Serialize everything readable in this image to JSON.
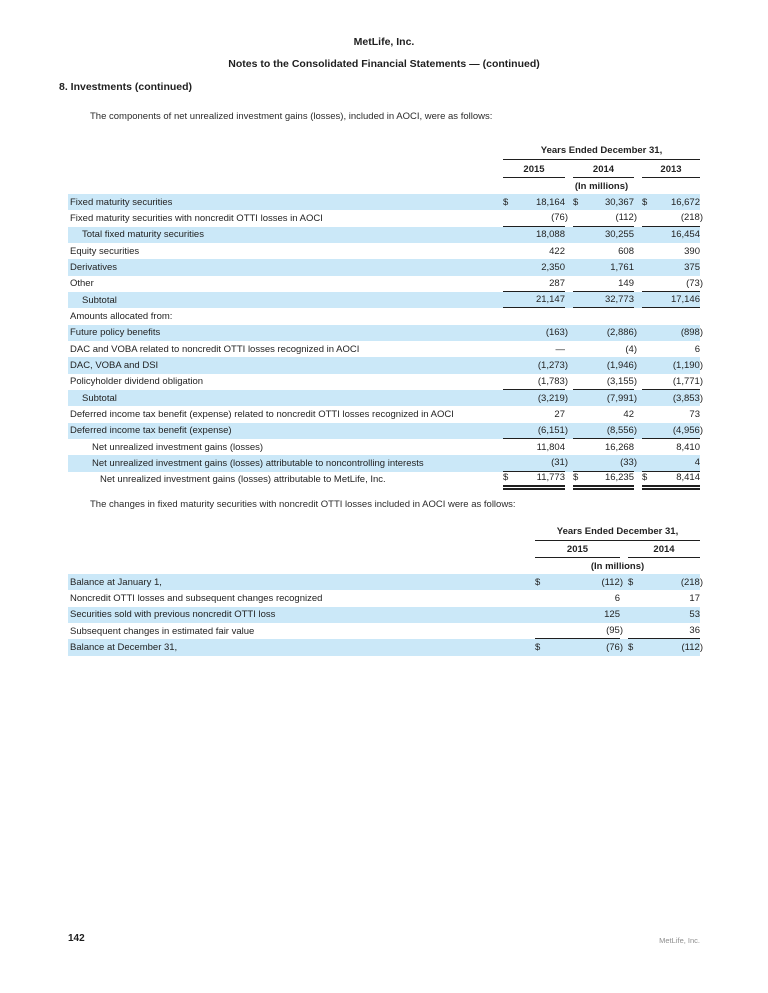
{
  "header": {
    "company": "MetLife, Inc.",
    "title": "Notes to the Consolidated Financial Statements — (continued)",
    "section": "8. Investments (continued)"
  },
  "paragraphs": {
    "intro1": "The components of net unrealized investment gains (losses), included in AOCI, were as follows:",
    "intro2": "The changes in fixed maturity securities with noncredit OTTI losses included in AOCI were as follows:"
  },
  "colors": {
    "row_shade": "#cbe8f8",
    "rule": "#1f1f1f",
    "text": "#232323",
    "footer_gray": "#8e8e8e"
  },
  "table1": {
    "period_header": "Years Ended December 31,",
    "units": "(In millions)",
    "columns": [
      "2015",
      "2014",
      "2013"
    ],
    "rows": [
      {
        "label": "Fixed maturity securities",
        "values": [
          "18,164",
          "30,367",
          "16,672"
        ],
        "dollar": true,
        "shaded": true,
        "indent": 0,
        "border": "none"
      },
      {
        "label": "Fixed maturity securities with noncredit OTTI losses in AOCI",
        "values": [
          "(76)",
          "(112)",
          "(218)"
        ],
        "dollar": false,
        "shaded": false,
        "indent": 0,
        "border": "bottom"
      },
      {
        "label": "Total fixed maturity securities",
        "values": [
          "18,088",
          "30,255",
          "16,454"
        ],
        "dollar": false,
        "shaded": true,
        "indent": 1,
        "border": "none"
      },
      {
        "label": "Equity securities",
        "values": [
          "422",
          "608",
          "390"
        ],
        "dollar": false,
        "shaded": false,
        "indent": 0,
        "border": "none"
      },
      {
        "label": "Derivatives",
        "values": [
          "2,350",
          "1,761",
          "375"
        ],
        "dollar": false,
        "shaded": true,
        "indent": 0,
        "border": "none"
      },
      {
        "label": "Other",
        "values": [
          "287",
          "149",
          "(73)"
        ],
        "dollar": false,
        "shaded": false,
        "indent": 0,
        "border": "bottom"
      },
      {
        "label": "Subtotal",
        "values": [
          "21,147",
          "32,773",
          "17,146"
        ],
        "dollar": false,
        "shaded": true,
        "indent": 1,
        "border": "bottom"
      },
      {
        "label": "Amounts allocated from:",
        "values": [
          "",
          "",
          ""
        ],
        "dollar": false,
        "shaded": false,
        "indent": 0,
        "border": "none"
      },
      {
        "label": "Future policy benefits",
        "values": [
          "(163)",
          "(2,886)",
          "(898)"
        ],
        "dollar": false,
        "shaded": true,
        "indent": 0,
        "border": "none"
      },
      {
        "label": "DAC and VOBA related to noncredit OTTI losses recognized in AOCI",
        "values": [
          "—",
          "(4)",
          "6"
        ],
        "dollar": false,
        "shaded": false,
        "indent": 0,
        "border": "none"
      },
      {
        "label": "DAC, VOBA and DSI",
        "values": [
          "(1,273)",
          "(1,946)",
          "(1,190)"
        ],
        "dollar": false,
        "shaded": true,
        "indent": 0,
        "border": "none"
      },
      {
        "label": "Policyholder dividend obligation",
        "values": [
          "(1,783)",
          "(3,155)",
          "(1,771)"
        ],
        "dollar": false,
        "shaded": false,
        "indent": 0,
        "border": "bottom"
      },
      {
        "label": "Subtotal",
        "values": [
          "(3,219)",
          "(7,991)",
          "(3,853)"
        ],
        "dollar": false,
        "shaded": true,
        "indent": 1,
        "border": "none"
      },
      {
        "label": "Deferred income tax benefit (expense) related to noncredit OTTI losses recognized in AOCI",
        "values": [
          "27",
          "42",
          "73"
        ],
        "dollar": false,
        "shaded": false,
        "indent": 0,
        "border": "none"
      },
      {
        "label": "Deferred income tax benefit (expense)",
        "values": [
          "(6,151)",
          "(8,556)",
          "(4,956)"
        ],
        "dollar": false,
        "shaded": true,
        "indent": 0,
        "border": "bottom"
      },
      {
        "label": "Net unrealized investment gains (losses)",
        "values": [
          "11,804",
          "16,268",
          "8,410"
        ],
        "dollar": false,
        "shaded": false,
        "indent": 2,
        "border": "none"
      },
      {
        "label": "Net unrealized investment gains (losses) attributable to noncontrolling interests",
        "values": [
          "(31)",
          "(33)",
          "4"
        ],
        "dollar": false,
        "shaded": true,
        "indent": 2,
        "border": "bottom"
      },
      {
        "label": "Net unrealized investment gains (losses) attributable to MetLife, Inc.",
        "values": [
          "11,773",
          "16,235",
          "8,414"
        ],
        "dollar": true,
        "shaded": false,
        "indent": 3,
        "border": "double"
      }
    ]
  },
  "table2": {
    "period_header": "Years Ended December 31,",
    "units": "(In millions)",
    "columns": [
      "2015",
      "2014"
    ],
    "rows": [
      {
        "label": "Balance at January 1,",
        "values": [
          "(112)",
          "(218)"
        ],
        "dollar": true,
        "shaded": true,
        "indent": 0,
        "border": "none"
      },
      {
        "label": "Noncredit OTTI losses and subsequent changes recognized",
        "values": [
          "6",
          "17"
        ],
        "dollar": false,
        "shaded": false,
        "indent": 0,
        "border": "none"
      },
      {
        "label": "Securities sold with previous noncredit OTTI loss",
        "values": [
          "125",
          "53"
        ],
        "dollar": false,
        "shaded": true,
        "indent": 0,
        "border": "none"
      },
      {
        "label": "Subsequent changes in estimated fair value",
        "values": [
          "(95)",
          "36"
        ],
        "dollar": false,
        "shaded": false,
        "indent": 0,
        "border": "bottom"
      },
      {
        "label": "Balance at December 31,",
        "values": [
          "(76)",
          "(112)"
        ],
        "dollar": true,
        "shaded": true,
        "indent": 0,
        "border": "none"
      }
    ]
  },
  "footer": {
    "page_number": "142",
    "company": "MetLife, Inc."
  }
}
